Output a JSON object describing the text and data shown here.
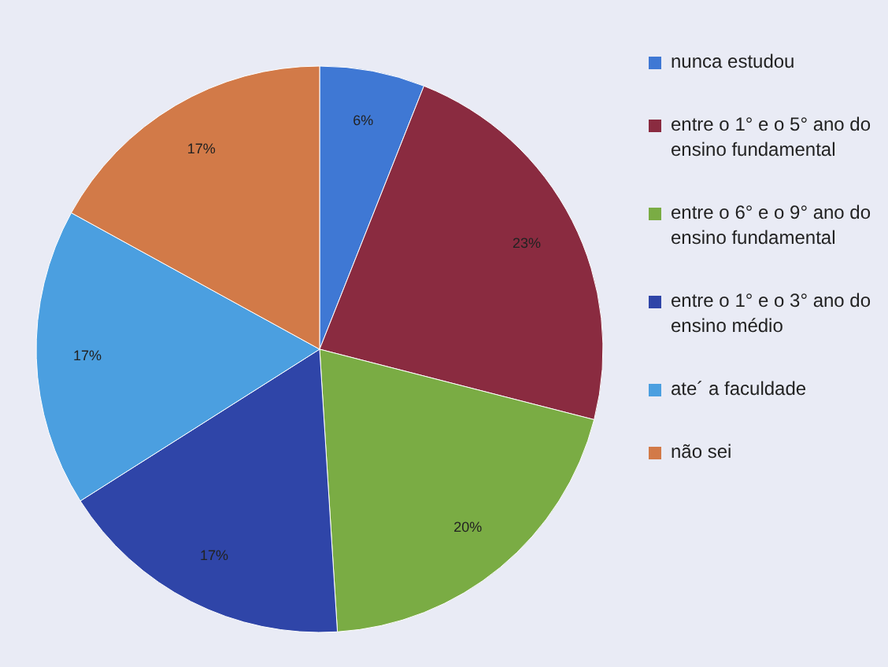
{
  "chart_data": {
    "type": "pie",
    "categories": [
      "nunca estudou",
      "entre o 1° e o 5° ano do ensino fundamental",
      "entre o 6° e o 9° ano do ensino fundamental",
      "entre o 1° e o 3° ano do ensino médio",
      "ate´ a faculdade",
      "não sei"
    ],
    "values": [
      6,
      23,
      20,
      17,
      17,
      17
    ],
    "colors": [
      "#3f78d4",
      "#8a2b40",
      "#7aac44",
      "#2f45a8",
      "#4b9fe0",
      "#d27a48"
    ],
    "value_labels": [
      "6%",
      "23%",
      "20%",
      "17%",
      "17%",
      "17%"
    ],
    "legend": "right"
  }
}
